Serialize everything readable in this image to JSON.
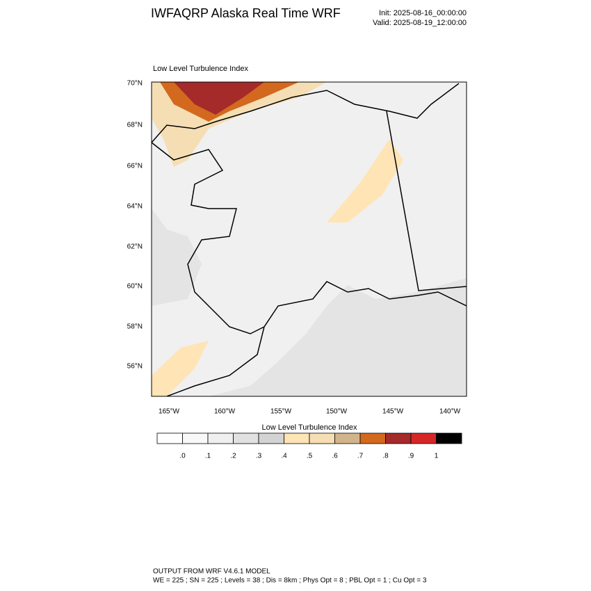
{
  "header": {
    "title": "IWFAQRP Alaska Real Time WRF",
    "init": "Init: 2025-08-16_00:00:00",
    "valid": "Valid: 2025-08-19_12:00:00"
  },
  "map": {
    "title": "Low Level Turbulence Index",
    "lat_labels": [
      "70°N",
      "68°N",
      "66°N",
      "64°N",
      "62°N",
      "60°N",
      "58°N",
      "56°N"
    ],
    "lon_labels": [
      "165°W",
      "160°W",
      "155°W",
      "150°W",
      "145°W",
      "140°W"
    ]
  },
  "colorbar": {
    "title": "Low Level Turbulence Index",
    "colors": [
      "#ffffff",
      "#f8f8f8",
      "#efefef",
      "#e1e1e1",
      "#d3d3d3",
      "#ffe4b5",
      "#f5deb3",
      "#d2b48c",
      "#d2691e",
      "#a52a2a",
      "#d62728",
      "#000000"
    ],
    "ticks": [
      {
        "value": 0,
        "label": ".0"
      },
      {
        "value": 0.1,
        "label": ".1"
      },
      {
        "value": 0.2,
        "label": ".2"
      },
      {
        "value": 0.3,
        "label": ".3"
      },
      {
        "value": 0.4,
        "label": ".4"
      },
      {
        "value": 0.5,
        "label": ".5"
      },
      {
        "value": 0.6,
        "label": ".6"
      },
      {
        "value": 0.7,
        "label": ".7"
      },
      {
        "value": 0.8,
        "label": ".8"
      },
      {
        "value": 0.9,
        "label": ".9"
      },
      1
    ]
  },
  "footer": {
    "line1": "OUTPUT FROM WRF V4.6.1 MODEL",
    "line2": "WE = 225 ; SN = 225 ; Levels = 38 ; Dis = 8km ; Phys Opt = 8 ; PBL Opt = 1 ; Cu Opt = 3"
  }
}
